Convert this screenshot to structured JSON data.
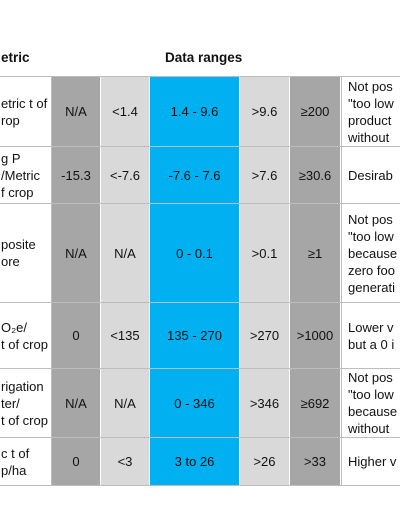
{
  "header": {
    "metric_label": "etric",
    "data_ranges_label": "Data ranges"
  },
  "colors": {
    "dark_gray": "#a6a6a6",
    "light_gray": "#d9d9d9",
    "blue": "#00b0f0"
  },
  "rows": [
    {
      "metric": "etric t of\nrop",
      "v1": "N/A",
      "v2": "<1.4",
      "v3": "1.4 - 9.6",
      "v4": ">9.6",
      "v5": "≥200",
      "note": "Not pos\n\"too low\nproduct\nwithout"
    },
    {
      "metric": "g P\n/Metric\nf crop",
      "v1": "-15.3",
      "v2": "<-7.6",
      "v3": "-7.6 - 7.6",
      "v4": ">7.6",
      "v5": "≥30.6",
      "note": "Desirab"
    },
    {
      "metric": "posite\nore",
      "v1": "N/A",
      "v2": "N/A",
      "v3": "0 - 0.1",
      "v4": ">0.1",
      "v5": "≥1",
      "note": "Not pos\n\"too low\nbecause\nzero foo\ngenerati"
    },
    {
      "metric": "O₂e/\nt of crop",
      "v1": "0",
      "v2": "<135",
      "v3": "135 - 270",
      "v4": ">270",
      "v5": ">1000",
      "note": "Lower v\nbut a 0 i"
    },
    {
      "metric": "rigation\nter/\nt of crop",
      "v1": "N/A",
      "v2": "N/A",
      "v3": "0 - 346",
      "v4": ">346",
      "v5": "≥692",
      "note": "Not pos\n\"too low\nbecause\nwithout"
    },
    {
      "metric": "c t of\np/ha",
      "v1": "0",
      "v2": "<3",
      "v3": "3 to 26",
      "v4": ">26",
      "v5": ">33",
      "note": "Higher v"
    }
  ]
}
